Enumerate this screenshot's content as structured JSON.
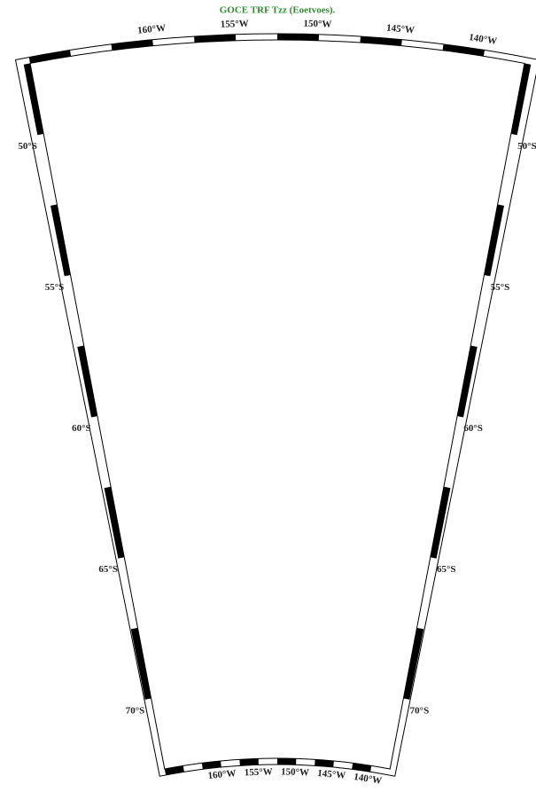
{
  "map": {
    "title": "GOCE TRF Tzz (Eoetvoes).",
    "longitude_labels": [
      "160°W",
      "155°W",
      "150°W",
      "145°W",
      "140°W"
    ],
    "latitude_labels": [
      "50°S",
      "55°S",
      "60°S",
      "65°S",
      "70°S"
    ]
  }
}
